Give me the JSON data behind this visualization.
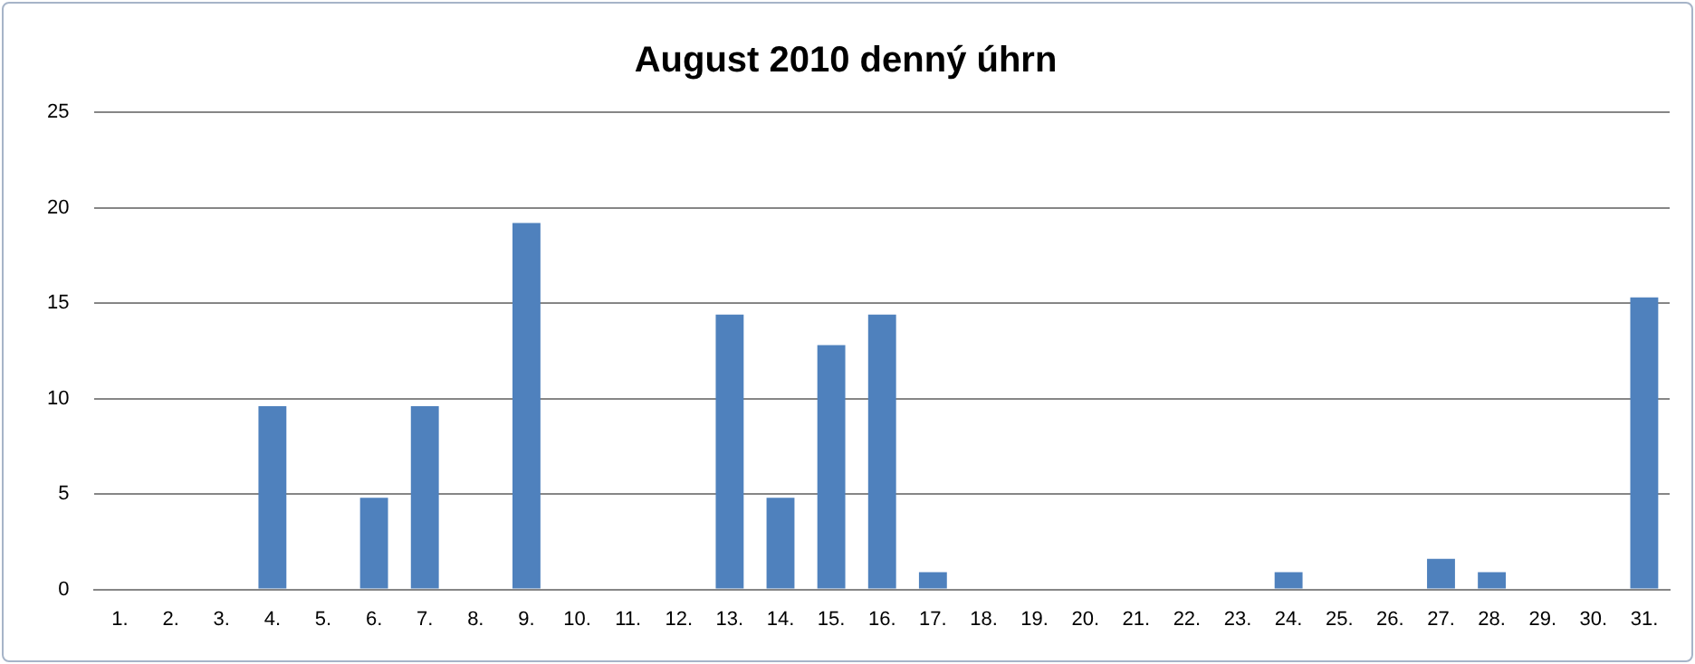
{
  "chart_data": {
    "type": "bar",
    "title": "August 2010 denný úhrn",
    "categories": [
      "1.",
      "2.",
      "3.",
      "4.",
      "5.",
      "6.",
      "7.",
      "8.",
      "9.",
      "10.",
      "11.",
      "12.",
      "13.",
      "14.",
      "15.",
      "16.",
      "17.",
      "18.",
      "19.",
      "20.",
      "21.",
      "22.",
      "23.",
      "24.",
      "25.",
      "26.",
      "27.",
      "28.",
      "29.",
      "30.",
      "31."
    ],
    "values": [
      0,
      0,
      0,
      9.6,
      0,
      4.8,
      9.6,
      0,
      19.2,
      0,
      0,
      0,
      14.4,
      4.8,
      12.8,
      14.4,
      0.9,
      0,
      0,
      0,
      0,
      0,
      0,
      0.9,
      0,
      0,
      1.6,
      0.9,
      0,
      0,
      15.3
    ],
    "color": "#4f81bd",
    "ylim": [
      0,
      25
    ],
    "yticks": [
      0,
      5,
      10,
      15,
      20,
      25
    ],
    "grid": "y",
    "legend": false
  }
}
